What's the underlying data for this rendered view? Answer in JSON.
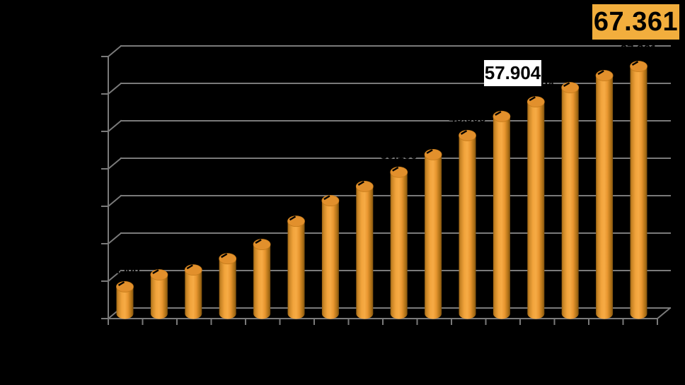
{
  "chart_data": {
    "type": "bar",
    "style": "3d-cylinder",
    "title": "",
    "xlabel": "",
    "ylabel": "",
    "background_color": "#000000",
    "bar_color": "#EE9C35",
    "gridline_color": "#7A7A7A",
    "grid": true,
    "legend": false,
    "ylim": [
      0,
      70
    ],
    "y_major_step": 10,
    "x_tick_count": 17,
    "categories": [
      "",
      "",
      "",
      "",
      "",
      "",
      "",
      "",
      "",
      "",
      "",
      "",
      "",
      "",
      "",
      ""
    ],
    "values": [
      8.5,
      11.7,
      13.0,
      16.0,
      19.8,
      26.0,
      31.5,
      35.3,
      39.1,
      43.8,
      48.9,
      54.0,
      57.904,
      61.7,
      64.9,
      67.361
    ],
    "value_label_texts": [
      "8.500",
      "11.700",
      "13.000",
      "16.000",
      "19.800",
      "26.000",
      "31.500",
      "35.300",
      "39.100",
      "43.800",
      "48.900",
      "54.000",
      "57.904",
      "61.700",
      "64.900",
      "67.361"
    ],
    "value_label_color": "#000000",
    "labels_legible": [
      false,
      false,
      false,
      false,
      false,
      false,
      false,
      false,
      false,
      false,
      false,
      false,
      true,
      false,
      false,
      true
    ],
    "highlighted_labels": [
      {
        "bar_index": 13,
        "text": "57.904",
        "box_style": "white"
      },
      {
        "bar_index": 16,
        "text": "67.361",
        "box_style": "orange"
      }
    ]
  },
  "callouts": {
    "white_box_label": "57.904",
    "orange_box_label": "67.361",
    "orange_box_color": "#F2AE3D"
  }
}
